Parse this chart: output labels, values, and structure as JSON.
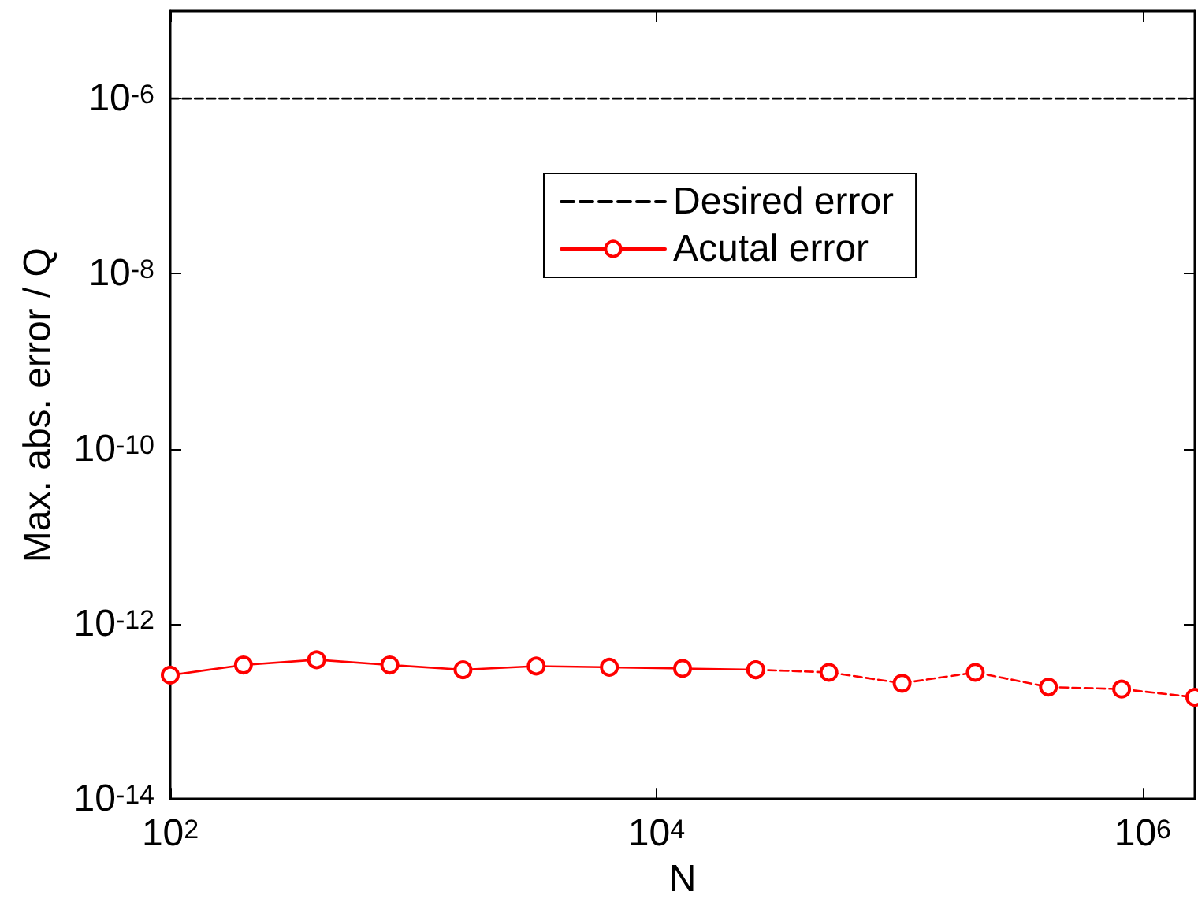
{
  "chart_data": {
    "type": "line",
    "xlabel": "N",
    "ylabel": "Max. abs. error / Q",
    "log": "xy",
    "grid": false,
    "legend": "top",
    "xlim": [
      100,
      1638400
    ],
    "ylim": [
      1e-14,
      1e-05
    ],
    "xticks": [
      {
        "value": 100,
        "label": "10$^{2}$"
      },
      {
        "value": 10000,
        "label": "10$^{4}$"
      },
      {
        "value": 1000000,
        "label": "10$^{6}$"
      }
    ],
    "yticks": [
      {
        "value": 1e-14,
        "label": "10$^{-14}$"
      },
      {
        "value": 1e-12,
        "label": "10$^{-12}$"
      },
      {
        "value": 1e-10,
        "label": "10$^{-10}$"
      },
      {
        "value": 1e-08,
        "label": "10$^{-8}$"
      },
      {
        "value": 1e-06,
        "label": "10$^{-6}$"
      }
    ],
    "series": [
      {
        "name": "Desired error",
        "color": "#000000",
        "line_style": "dashed",
        "marker": "none",
        "x": [
          100,
          1638400
        ],
        "values": [
          1e-06,
          1e-06
        ]
      },
      {
        "name": "Acutal error",
        "color": "#ff0000",
        "line_style": "solid",
        "marker": "circle",
        "x": [
          100,
          200,
          400,
          800,
          1600,
          3200,
          6400,
          12800,
          25600
        ],
        "values": [
          2.6e-13,
          3.4e-13,
          3.9e-13,
          3.4e-13,
          3e-13,
          3.3e-13,
          3.2e-13,
          3.1e-13,
          3e-13
        ]
      },
      {
        "color": "#ff0000",
        "line_style": "dashed",
        "marker": "circle",
        "x": [
          25600,
          51200,
          102400,
          204800,
          409600,
          819200,
          1638400
        ],
        "values": [
          3e-13,
          2.8e-13,
          2.1e-13,
          2.8e-13,
          1.9e-13,
          1.8e-13,
          1.45e-13
        ]
      }
    ]
  }
}
